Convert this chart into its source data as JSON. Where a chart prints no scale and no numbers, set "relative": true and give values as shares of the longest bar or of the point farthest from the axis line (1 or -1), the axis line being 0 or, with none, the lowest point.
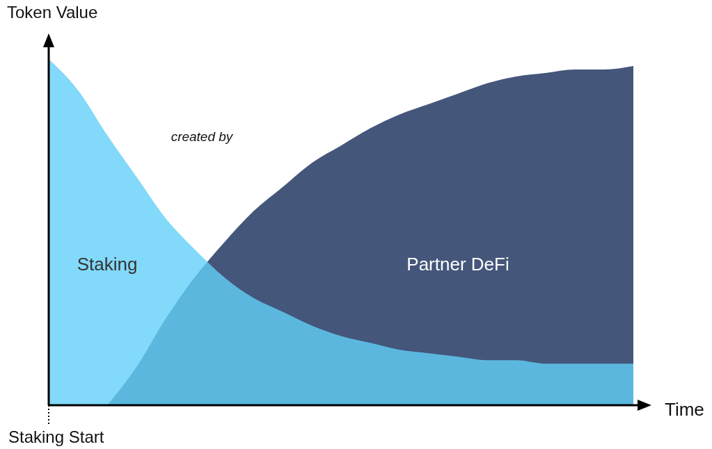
{
  "chart_data": {
    "type": "area",
    "relative": true,
    "xlabel": "Time",
    "ylabel": "Token Value",
    "legend": false,
    "annotations": [
      "created by",
      "Staking Start"
    ],
    "categories": [
      null,
      null,
      null,
      null,
      null,
      null,
      null,
      null,
      null,
      null,
      null,
      null,
      null,
      null,
      null,
      null,
      null,
      null,
      null,
      null,
      null
    ],
    "series": [
      {
        "name": "Partner DeFi",
        "color": "#44567a",
        "values": [
          null,
          null,
          0,
          0.11,
          0.25,
          0.37,
          0.47,
          0.56,
          0.63,
          0.7,
          0.75,
          0.8,
          0.84,
          0.87,
          0.9,
          0.93,
          0.95,
          0.96,
          0.97,
          0.97,
          0.98
        ]
      },
      {
        "name": "Staking",
        "color": "#63d0f8",
        "values": [
          1,
          0.91,
          0.78,
          0.66,
          0.54,
          0.45,
          0.37,
          0.31,
          0.27,
          0.23,
          0.2,
          0.18,
          0.16,
          0.15,
          0.14,
          0.13,
          0.13,
          0.12,
          0.12,
          0.12,
          0.12
        ]
      }
    ]
  }
}
